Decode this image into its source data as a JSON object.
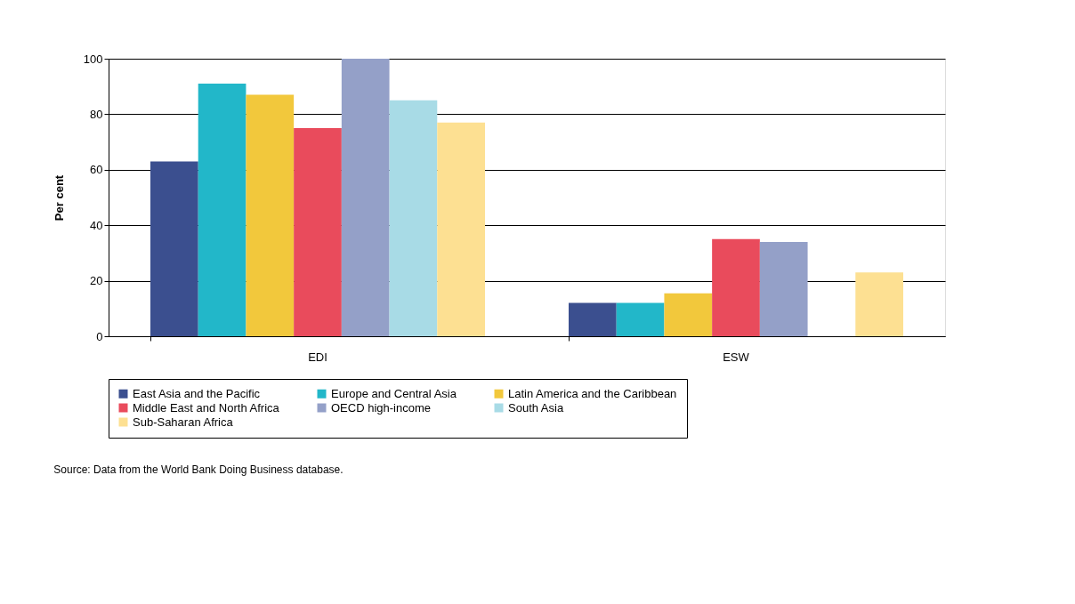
{
  "chart_data": {
    "type": "bar",
    "ylabel": "Per cent",
    "categories": [
      "EDI",
      "ESW"
    ],
    "ylim": [
      0,
      100
    ],
    "yticks": [
      0,
      20,
      40,
      60,
      80,
      100
    ],
    "grid": "y",
    "legend": "bottom",
    "annotations": [
      "Source: Data from the World Bank Doing Business database."
    ],
    "series": [
      {
        "name": "East Asia and the Pacific",
        "color": "#3b4f8f",
        "values": [
          63,
          12
        ]
      },
      {
        "name": "Europe and Central Asia",
        "color": "#22b7c9",
        "values": [
          91,
          12
        ]
      },
      {
        "name": "Latin America and the Caribbean",
        "color": "#f2c83c",
        "values": [
          87,
          15.5
        ]
      },
      {
        "name": "Middle East and North Africa",
        "color": "#e94b5c",
        "values": [
          75,
          35
        ]
      },
      {
        "name": "OECD high-income",
        "color": "#94a0c8",
        "values": [
          100,
          34
        ]
      },
      {
        "name": "South Asia",
        "color": "#a8dbe6",
        "values": [
          85,
          null
        ]
      },
      {
        "name": "Sub-Saharan Africa",
        "color": "#fde092",
        "values": [
          77,
          23
        ]
      }
    ]
  }
}
